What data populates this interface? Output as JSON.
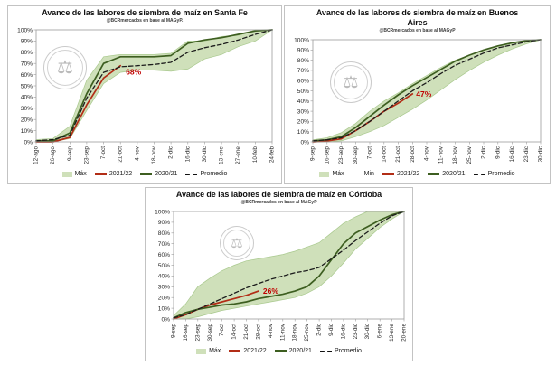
{
  "page": {
    "background": "#ffffff"
  },
  "colors": {
    "band_fill": "#cfe0ba",
    "band_edge": "#a9c98e",
    "line_2021_22": "#b22d16",
    "line_2020_21": "#3d5e20",
    "promedio": "#1c1c1c",
    "label_red": "#c00000",
    "axis": "#9b9b9b",
    "panel_border": "#c3c3c3",
    "watermark": "#a8a8a8"
  },
  "watermark": {
    "icon": "scales-seal",
    "symbol": "⚖"
  },
  "chart_data": [
    {
      "type": "area",
      "title": "Avance de las labores de siembra de maíz en Santa Fe",
      "subtitle": "@BCRmercados en base al MAGyP.",
      "xlabel": "",
      "ylabel": "",
      "ylim": [
        0,
        100
      ],
      "ytick_step": 10,
      "ytick_format": "percent",
      "grid": false,
      "legend_position": "bottom",
      "categories": [
        "12-ago",
        "26-ago",
        "9-sep",
        "23-sep",
        "7-oct",
        "21-oct",
        "4-nov",
        "18-nov",
        "2-dic",
        "16-dic",
        "30-dic",
        "13-ene",
        "27-ene",
        "10-feb",
        "24-feb"
      ],
      "band": {
        "max": [
          2,
          3,
          14,
          55,
          76,
          78,
          78,
          78,
          79,
          90,
          90,
          94,
          95,
          100,
          100
        ],
        "min": [
          0,
          0,
          3,
          28,
          52,
          62,
          64,
          64,
          63,
          65,
          74,
          78,
          85,
          90,
          100
        ]
      },
      "series": [
        {
          "name": "2021/22",
          "style": "solid",
          "color_key": "line_2021_22",
          "end_label": "68%",
          "values": [
            0,
            0,
            4,
            33,
            57,
            68
          ]
        },
        {
          "name": "2020/21",
          "style": "solid",
          "color_key": "line_2020_21",
          "values": [
            1,
            1,
            8,
            43,
            70,
            76,
            76,
            76,
            77,
            88,
            91,
            93,
            96,
            99,
            100
          ]
        },
        {
          "name": "Promedio",
          "style": "dashed",
          "color_key": "promedio",
          "values": [
            1,
            2,
            6,
            39,
            62,
            67,
            68,
            69,
            71,
            80,
            84,
            87,
            91,
            96,
            100
          ]
        }
      ],
      "legend": [
        {
          "label": "Máx",
          "swatch": "band"
        },
        {
          "label": "2021/22",
          "swatch": "line-red"
        },
        {
          "label": "2020/21",
          "swatch": "line-green"
        },
        {
          "label": "Promedio",
          "swatch": "dashed"
        }
      ]
    },
    {
      "type": "area",
      "title": "Avance de las labores de siembra de maíz en Buenos Aires",
      "subtitle": "@BCRmercados en base al MAGyP",
      "xlabel": "",
      "ylabel": "",
      "ylim": [
        0,
        100
      ],
      "ytick_step": 10,
      "ytick_format": "percent",
      "grid": false,
      "legend_position": "bottom",
      "categories": [
        "9-sep",
        "16-sep",
        "23-sep",
        "30-sep",
        "7-oct",
        "14-oct",
        "21-oct",
        "28-oct",
        "4-nov",
        "11-nov",
        "18-nov",
        "25-nov",
        "2-dic",
        "9-dic",
        "16-dic",
        "23-dic",
        "30-dic"
      ],
      "band": {
        "max": [
          2,
          4,
          9,
          18,
          30,
          40,
          48,
          57,
          65,
          73,
          80,
          85,
          90,
          94,
          97,
          99,
          100
        ],
        "min": [
          0,
          0,
          1,
          5,
          10,
          16,
          24,
          32,
          41,
          51,
          61,
          70,
          78,
          85,
          91,
          96,
          100
        ]
      },
      "series": [
        {
          "name": "2021/22",
          "style": "solid",
          "color_key": "line_2021_22",
          "end_label": "47%",
          "values": [
            0,
            1,
            3,
            11,
            20,
            30,
            38,
            47
          ]
        },
        {
          "name": "2020/21",
          "style": "solid",
          "color_key": "line_2020_21",
          "values": [
            1,
            2,
            5,
            14,
            25,
            36,
            46,
            55,
            63,
            71,
            79,
            85,
            90,
            94,
            97,
            99,
            100
          ]
        },
        {
          "name": "Promedio",
          "style": "dashed",
          "color_key": "promedio",
          "values": [
            1,
            2,
            4,
            11,
            20,
            30,
            40,
            50,
            58,
            67,
            75,
            81,
            87,
            92,
            95,
            98,
            100
          ]
        }
      ],
      "legend": [
        {
          "label": "Máx",
          "swatch": "band"
        },
        {
          "label": "Min",
          "swatch": "none"
        },
        {
          "label": "2021/22",
          "swatch": "line-red"
        },
        {
          "label": "2020/21",
          "swatch": "line-green"
        },
        {
          "label": "Promedio",
          "swatch": "dashed"
        }
      ]
    },
    {
      "type": "area",
      "title": "Avance de las labores de siembra de maíz en Córdoba",
      "subtitle": "@BCRmercados en base al MAGyP",
      "xlabel": "",
      "ylabel": "",
      "ylim": [
        0,
        100
      ],
      "ytick_step": 10,
      "ytick_format": "percent",
      "grid": false,
      "legend_position": "bottom",
      "categories": [
        "9-sep",
        "16-sep",
        "23-sep",
        "30-sep",
        "7-oct",
        "14-oct",
        "21-oct",
        "28-oct",
        "4-nov",
        "11-nov",
        "18-nov",
        "25-nov",
        "2-dic",
        "9-dic",
        "16-dic",
        "23-dic",
        "30-dic",
        "6-ene",
        "13-ene",
        "20-ene"
      ],
      "band": {
        "max": [
          3,
          14,
          30,
          38,
          45,
          50,
          54,
          56,
          58,
          60,
          63,
          67,
          71,
          80,
          89,
          95,
          100,
          100,
          100,
          100
        ],
        "min": [
          0,
          0,
          2,
          5,
          8,
          10,
          12,
          14,
          16,
          18,
          20,
          24,
          30,
          40,
          52,
          65,
          75,
          85,
          93,
          100
        ]
      },
      "series": [
        {
          "name": "2021/22",
          "style": "solid",
          "color_key": "line_2021_22",
          "end_label": "26%",
          "values": [
            0,
            4,
            9,
            13,
            16,
            19,
            22,
            26
          ]
        },
        {
          "name": "2020/21",
          "style": "solid",
          "color_key": "line_2020_21",
          "values": [
            1,
            6,
            9,
            11,
            13,
            14,
            16,
            19,
            21,
            23,
            26,
            30,
            40,
            55,
            70,
            80,
            86,
            92,
            97,
            100
          ]
        },
        {
          "name": "Promedio",
          "style": "dashed",
          "color_key": "promedio",
          "values": [
            1,
            4,
            9,
            14,
            19,
            24,
            29,
            33,
            37,
            40,
            43,
            45,
            48,
            56,
            64,
            73,
            81,
            89,
            96,
            100
          ]
        }
      ],
      "legend": [
        {
          "label": "Máx",
          "swatch": "band"
        },
        {
          "label": "2021/22",
          "swatch": "line-red"
        },
        {
          "label": "2020/21",
          "swatch": "line-green"
        },
        {
          "label": "Promedio",
          "swatch": "dashed"
        }
      ]
    }
  ]
}
